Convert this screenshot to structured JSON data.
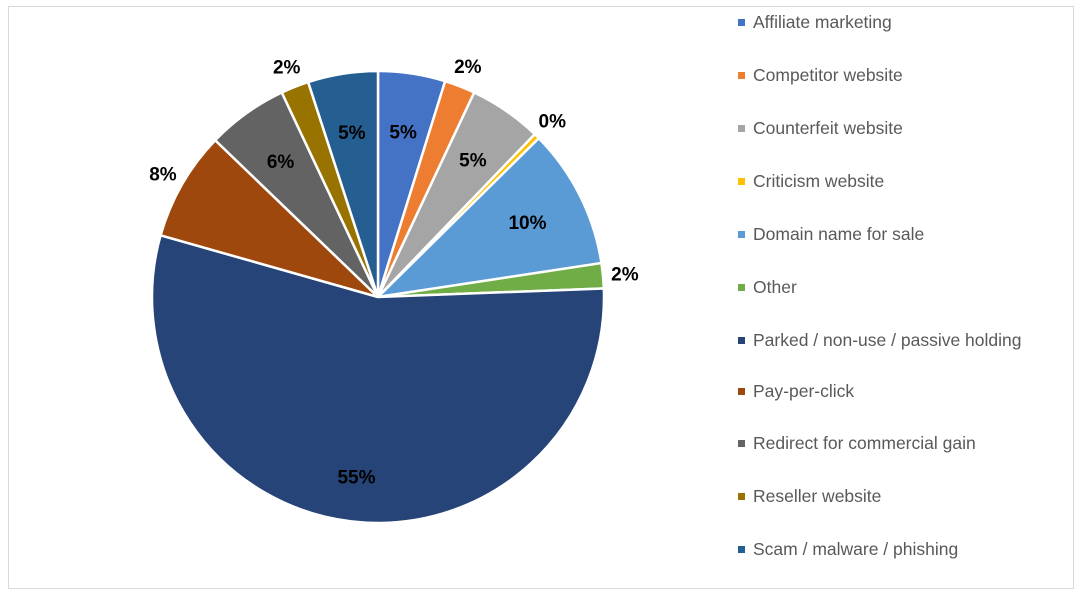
{
  "chart_data": {
    "type": "pie",
    "title": "",
    "legend_position": "right",
    "start_angle_deg": 0,
    "direction": "clockwise",
    "categories": [
      "Affiliate marketing",
      "Competitor website",
      "Counterfeit website",
      "Criticism website",
      "Domain name for sale",
      "Other",
      "Parked / non-use / passive holding",
      "Pay-per-click",
      "Redirect for commercial gain",
      "Reseller website",
      "Scam / malware / phishing"
    ],
    "values": [
      4.8,
      2.2,
      5.2,
      0.4,
      10,
      1.8,
      55,
      7.8,
      5.8,
      2,
      5
    ],
    "data_labels": [
      "5%",
      "2%",
      "5%",
      "0%",
      "10%",
      "2%",
      "55%",
      "8%",
      "6%",
      "2%",
      "5%"
    ],
    "colors": [
      "#4472C4",
      "#ED7D31",
      "#A5A5A5",
      "#FFC000",
      "#5B9BD5",
      "#70AD47",
      "#264478",
      "#9E480E",
      "#636363",
      "#997300",
      "#255E91"
    ]
  }
}
